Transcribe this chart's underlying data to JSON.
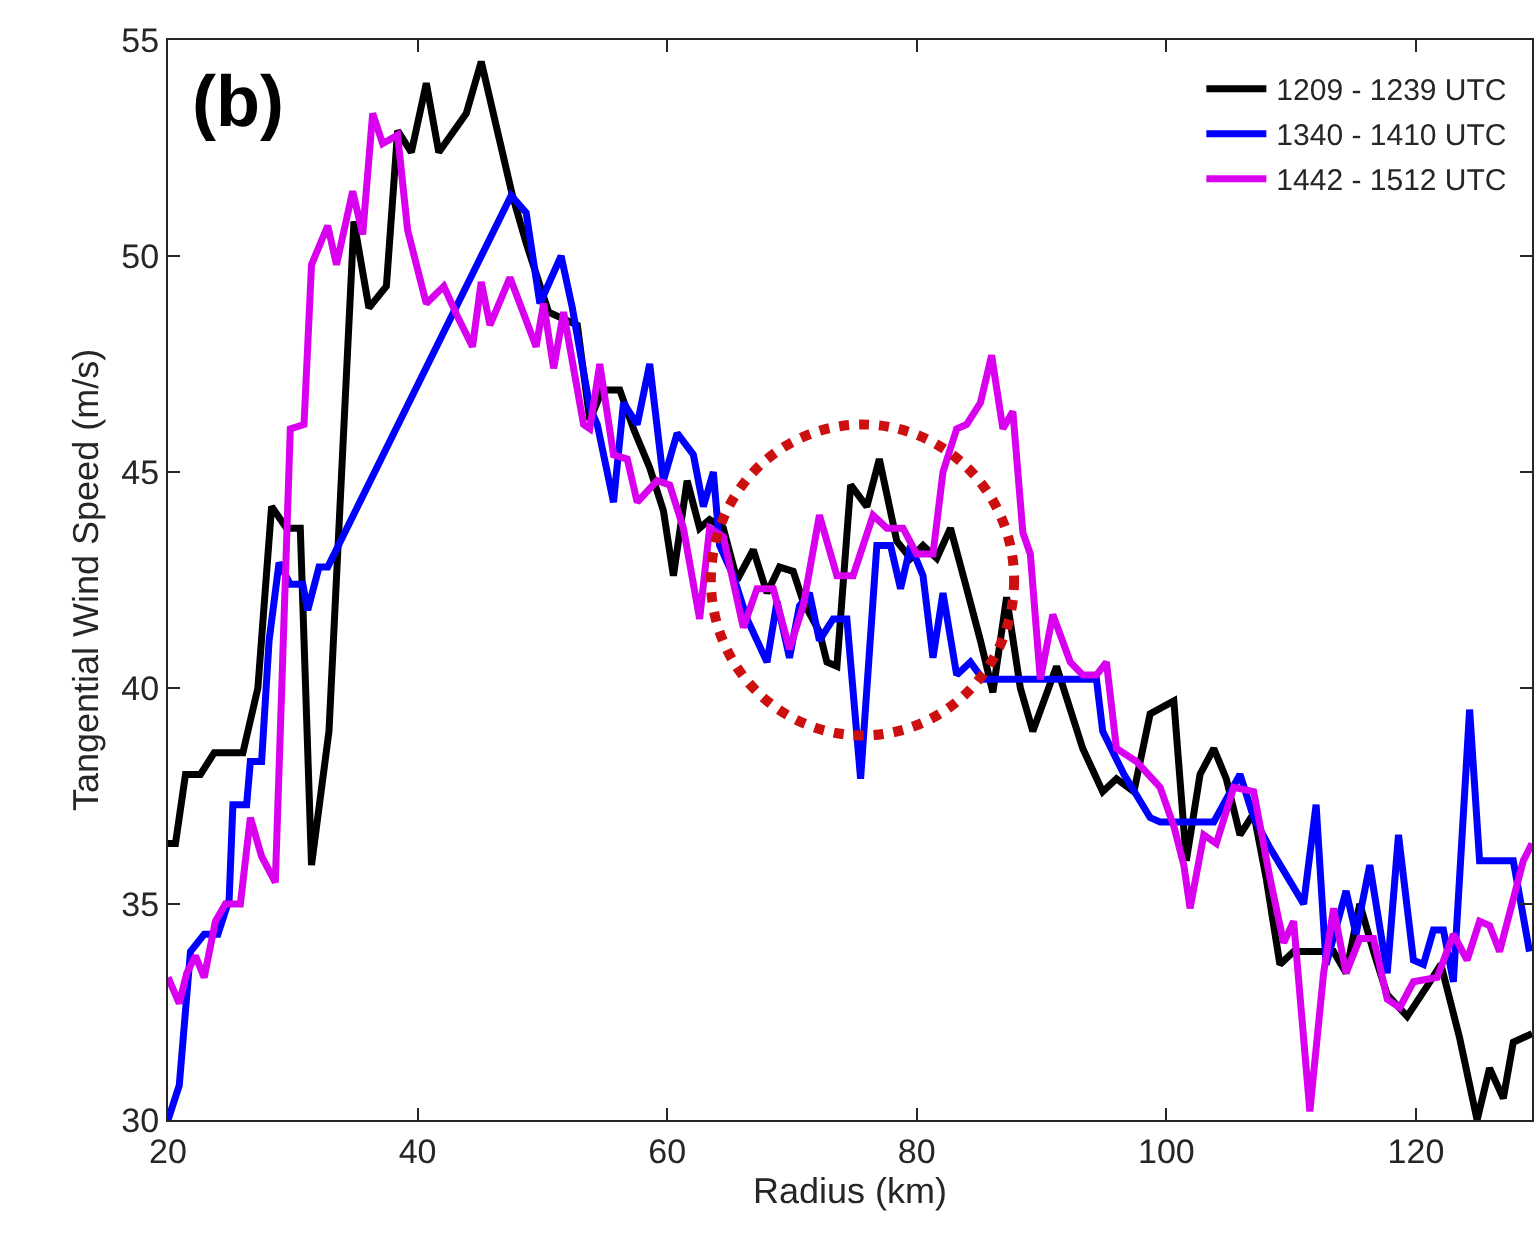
{
  "chart_data": {
    "type": "line",
    "xlabel": "Radius (km)",
    "ylabel": "Tangential Wind Speed (m/s)",
    "annotations": [
      "(b)"
    ],
    "xlim": [
      20,
      129.3
    ],
    "ylim": [
      30,
      55
    ],
    "xticks": [
      20,
      40,
      60,
      80,
      100,
      120
    ],
    "yticks": [
      30,
      35,
      40,
      45,
      50,
      55
    ],
    "grid": false,
    "legend": "top right",
    "series": [
      {
        "name": "1209 - 1239 UTC",
        "color": "#000000",
        "x": [
          20,
          20.6,
          21.4,
          22.6,
          23.7,
          26.0,
          27.2,
          28.3,
          29.5,
          30.6,
          31.5,
          32.9,
          34.9,
          36.1,
          37.5,
          38.4,
          39.5,
          40.7,
          41.7,
          43.9,
          45.1,
          47.6,
          48.7,
          50.5,
          52.8,
          53.8,
          54.8,
          56.2,
          57.3,
          58.6,
          59.7,
          60.5,
          61.6,
          62.6,
          63.4,
          64.5,
          65.6,
          66.9,
          68.0,
          69.0,
          70.1,
          70.9,
          72.2,
          72.8,
          73.6,
          74.7,
          76.0,
          77.0,
          78.4,
          79.5,
          80.5,
          81.6,
          82.7,
          84.0,
          85.1,
          86.1,
          87.2,
          88.3,
          89.3,
          91.2,
          93.3,
          94.9,
          96.0,
          97.4,
          98.7,
          100.6,
          101.6,
          102.7,
          103.8,
          104.8,
          105.9,
          107.0,
          108.0,
          109.1,
          110.2,
          112.3,
          113.4,
          114.4,
          115.5,
          116.6,
          117.7,
          119.3,
          120.9,
          122.0,
          123.5,
          124.9,
          125.9,
          127.0,
          127.8,
          129.3
        ],
        "values": [
          36.4,
          36.4,
          38.0,
          38.0,
          38.5,
          38.5,
          40.0,
          44.2,
          43.7,
          43.7,
          35.9,
          39.0,
          50.8,
          48.8,
          49.3,
          52.9,
          52.4,
          54.0,
          52.4,
          53.3,
          54.5,
          51.4,
          50.3,
          48.7,
          48.4,
          46.2,
          46.9,
          46.9,
          46.0,
          45.1,
          44.1,
          42.6,
          44.8,
          43.7,
          43.9,
          43.7,
          42.5,
          43.2,
          42.2,
          42.8,
          42.7,
          42.0,
          41.3,
          40.6,
          40.5,
          44.7,
          44.2,
          45.3,
          43.4,
          43.0,
          43.3,
          43.0,
          43.7,
          42.3,
          41.1,
          39.9,
          42.1,
          40.0,
          39.0,
          40.5,
          38.6,
          37.6,
          37.9,
          37.6,
          39.4,
          39.7,
          36.0,
          38.0,
          38.6,
          37.9,
          36.6,
          37.1,
          35.6,
          33.6,
          33.9,
          33.9,
          33.9,
          33.4,
          35.0,
          33.9,
          32.9,
          32.4,
          33.1,
          33.6,
          31.9,
          30.0,
          31.2,
          30.5,
          31.8,
          32.0
        ]
      },
      {
        "name": "1340 - 1410 UTC",
        "color": "#0000ff",
        "x": [
          20.0,
          20.9,
          21.8,
          22.9,
          24.0,
          24.9,
          25.2,
          26.3,
          26.6,
          27.5,
          28.1,
          28.9,
          29.8,
          30.8,
          31.2,
          32.1,
          32.8,
          47.5,
          48.7,
          49.8,
          51.5,
          52.4,
          53.8,
          54.4,
          55.7,
          56.5,
          57.6,
          58.6,
          59.7,
          60.8,
          62.1,
          62.9,
          63.7,
          64.2,
          65.3,
          66.4,
          68.0,
          68.8,
          69.8,
          70.6,
          71.4,
          72.2,
          73.3,
          74.4,
          75.5,
          76.8,
          77.9,
          78.7,
          79.5,
          80.5,
          81.3,
          82.1,
          83.2,
          84.3,
          85.3,
          94.4,
          94.9,
          96.6,
          98.7,
          99.5,
          101.9,
          103.8,
          105.9,
          107.0,
          108.3,
          111.0,
          112.0,
          112.8,
          114.4,
          115.2,
          116.3,
          117.7,
          118.6,
          119.8,
          120.6,
          121.4,
          122.2,
          123.0,
          124.3,
          125.1,
          127.8,
          129.1
        ],
        "values": [
          30.0,
          30.8,
          33.9,
          34.3,
          34.3,
          35.1,
          37.3,
          37.3,
          38.3,
          38.3,
          41.1,
          42.9,
          42.4,
          42.4,
          41.8,
          42.8,
          42.8,
          51.4,
          51.0,
          48.9,
          50.0,
          48.8,
          46.5,
          46.1,
          44.3,
          46.6,
          46.1,
          47.5,
          44.8,
          45.9,
          45.4,
          44.2,
          45.0,
          43.3,
          42.6,
          41.6,
          40.6,
          42.0,
          40.7,
          41.9,
          42.2,
          41.1,
          41.6,
          41.6,
          37.9,
          43.3,
          43.3,
          42.3,
          43.3,
          42.6,
          40.7,
          42.2,
          40.3,
          40.6,
          40.2,
          40.2,
          39.0,
          38.0,
          37.0,
          36.9,
          36.9,
          36.9,
          38.0,
          37.0,
          36.3,
          35.0,
          37.3,
          33.6,
          35.3,
          34.3,
          35.9,
          33.4,
          36.6,
          33.7,
          33.6,
          34.4,
          34.4,
          33.2,
          39.5,
          36.0,
          36.0,
          33.9
        ]
      },
      {
        "name": "1442 - 1512 UTC",
        "color": "#d800ee",
        "x": [
          20.0,
          20.9,
          21.5,
          22.2,
          22.9,
          23.8,
          24.6,
          25.8,
          26.6,
          27.5,
          28.6,
          29.8,
          30.9,
          31.5,
          32.8,
          33.5,
          34.8,
          35.6,
          36.4,
          37.2,
          38.4,
          39.2,
          40.7,
          42.1,
          43.2,
          44.4,
          45.1,
          45.8,
          47.4,
          49.5,
          50.1,
          50.9,
          51.7,
          53.3,
          53.8,
          54.6,
          55.7,
          56.8,
          57.6,
          59.2,
          60.2,
          61.3,
          62.6,
          63.4,
          64.5,
          66.1,
          67.2,
          68.5,
          69.8,
          70.9,
          72.2,
          73.6,
          74.9,
          76.5,
          77.6,
          78.9,
          80.0,
          81.3,
          82.1,
          83.2,
          84.0,
          85.1,
          86.0,
          86.9,
          87.7,
          88.5,
          89.1,
          89.9,
          90.9,
          92.3,
          93.3,
          94.4,
          95.2,
          96.0,
          97.6,
          99.5,
          100.6,
          101.4,
          101.9,
          103.0,
          104.0,
          105.4,
          107.0,
          108.3,
          109.4,
          110.2,
          111.5,
          112.6,
          113.4,
          114.4,
          115.5,
          116.6,
          117.7,
          118.7,
          119.8,
          121.7,
          123.0,
          124.1,
          125.1,
          125.9,
          126.7,
          128.6,
          129.3
        ],
        "values": [
          33.3,
          32.7,
          33.4,
          33.8,
          33.3,
          34.6,
          35.0,
          35.0,
          37.0,
          36.1,
          35.5,
          46.0,
          46.1,
          49.8,
          50.7,
          49.8,
          51.5,
          50.5,
          53.3,
          52.6,
          52.8,
          50.6,
          48.9,
          49.3,
          48.6,
          47.9,
          49.4,
          48.4,
          49.5,
          47.9,
          48.9,
          47.4,
          48.7,
          46.1,
          46.0,
          47.5,
          45.4,
          45.3,
          44.3,
          44.8,
          44.7,
          43.7,
          41.6,
          43.7,
          43.5,
          41.4,
          42.3,
          42.3,
          40.9,
          41.9,
          44.0,
          42.6,
          42.6,
          44.0,
          43.7,
          43.7,
          43.1,
          43.1,
          45.0,
          46.0,
          46.1,
          46.6,
          47.7,
          46.0,
          46.4,
          43.6,
          43.1,
          40.2,
          41.7,
          40.6,
          40.3,
          40.3,
          40.6,
          38.6,
          38.3,
          37.7,
          36.8,
          35.9,
          34.9,
          36.6,
          36.4,
          37.7,
          37.6,
          35.6,
          34.1,
          34.6,
          30.2,
          33.4,
          34.9,
          33.4,
          34.2,
          34.2,
          32.8,
          32.6,
          33.2,
          33.3,
          34.3,
          33.7,
          34.6,
          34.5,
          33.9,
          36.0,
          36.4
        ]
      }
    ]
  }
}
